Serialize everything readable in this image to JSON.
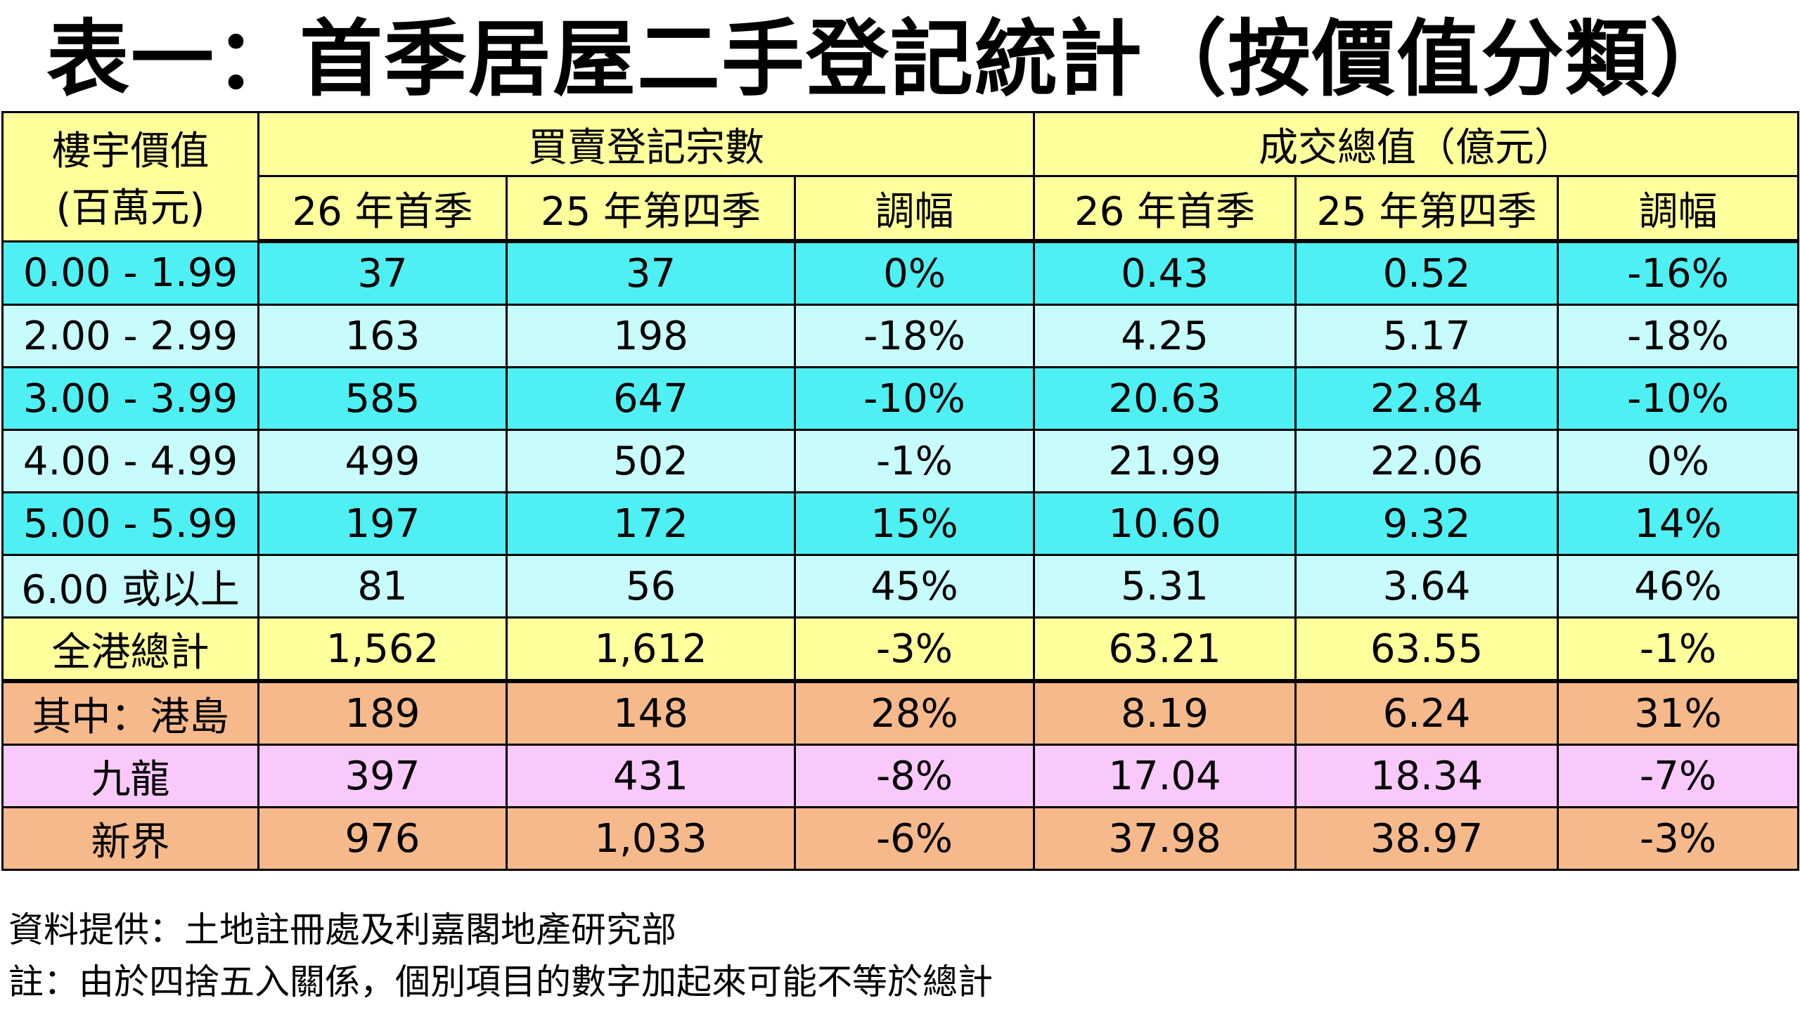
{
  "title": "表一：首季居屋二手登記統計（按價值分類）",
  "table": {
    "header_price_line1": "樓宇價值",
    "header_price_line2": "(百萬元)",
    "header_count_group": "買賣登記宗數",
    "header_value_group": "成交總值（億元）",
    "sub_count_q1": "26 年首季",
    "sub_count_q4": "25 年第四季",
    "sub_count_change": "調幅",
    "sub_value_q1": "26 年首季",
    "sub_value_q4": "25 年第四季",
    "sub_value_change": "調幅",
    "rows": [
      {
        "band": "0.00 - 1.99",
        "count_q1": "37",
        "count_q4": "37",
        "count_change": "0%",
        "value_q1": "0.43",
        "value_q4": "0.52",
        "value_change": "-16%"
      },
      {
        "band": "2.00 - 2.99",
        "count_q1": "163",
        "count_q4": "198",
        "count_change": "-18%",
        "value_q1": "4.25",
        "value_q4": "5.17",
        "value_change": "-18%"
      },
      {
        "band": "3.00 - 3.99",
        "count_q1": "585",
        "count_q4": "647",
        "count_change": "-10%",
        "value_q1": "20.63",
        "value_q4": "22.84",
        "value_change": "-10%"
      },
      {
        "band": "4.00 - 4.99",
        "count_q1": "499",
        "count_q4": "502",
        "count_change": "-1%",
        "value_q1": "21.99",
        "value_q4": "22.06",
        "value_change": "0%"
      },
      {
        "band": "5.00 - 5.99",
        "count_q1": "197",
        "count_q4": "172",
        "count_change": "15%",
        "value_q1": "10.60",
        "value_q4": "9.32",
        "value_change": "14%"
      },
      {
        "band": "6.00 或以上",
        "count_q1": "81",
        "count_q4": "56",
        "count_change": "45%",
        "value_q1": "5.31",
        "value_q4": "3.64",
        "value_change": "46%"
      },
      {
        "band": "全港總計",
        "count_q1": "1,562",
        "count_q4": "1,612",
        "count_change": "-3%",
        "value_q1": "63.21",
        "value_q4": "63.55",
        "value_change": "-1%"
      },
      {
        "band": "其中：港島",
        "count_q1": "189",
        "count_q4": "148",
        "count_change": "28%",
        "value_q1": "8.19",
        "value_q4": "6.24",
        "value_change": "31%"
      },
      {
        "band": "九龍",
        "count_q1": "397",
        "count_q4": "431",
        "count_change": "-8%",
        "value_q1": "17.04",
        "value_q4": "18.34",
        "value_change": "-7%"
      },
      {
        "band": "新界",
        "count_q1": "976",
        "count_q4": "1,033",
        "count_change": "-6%",
        "value_q1": "37.98",
        "value_q4": "38.97",
        "value_change": "-3%"
      }
    ]
  },
  "source": "資料提供：土地註冊處及利嘉閣地產研究部",
  "note": "註：由於四捨五入關係，個別項目的數字加起來可能不等於總計",
  "colors": {
    "header_yellow": "#ffff9c",
    "band_cyan": "#4ff0f4",
    "band_pale_cyan": "#c8fbfb",
    "district_orange": "#f6b98b",
    "district_pink": "#fac9fb"
  }
}
